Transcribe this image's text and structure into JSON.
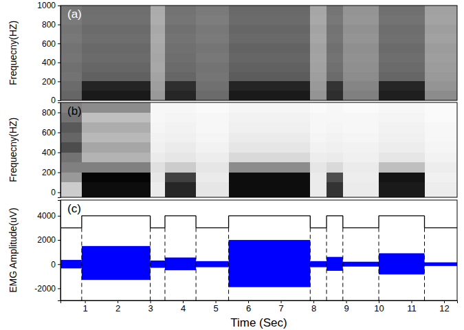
{
  "chart_data": [
    {
      "type": "heatmap",
      "annotation": "(a)",
      "ylabel": "Frequecny(HZ)",
      "tick_labels": "y",
      "xlim": [
        0.25,
        12.4
      ],
      "ylim": [
        0,
        1000
      ],
      "yticks": [
        0,
        200,
        400,
        600,
        800,
        1000
      ],
      "x_edges": [
        0.25,
        0.9,
        3.0,
        3.45,
        4.4,
        5.4,
        7.9,
        8.4,
        8.9,
        10.0,
        11.4,
        12.4
      ],
      "y_edges": [
        0,
        100,
        200,
        300,
        400,
        500,
        600,
        700,
        800,
        900,
        1000
      ],
      "zlim": [
        0,
        1
      ],
      "z": [
        [
          0.4,
          0.1,
          0.6,
          0.15,
          0.42,
          0.1,
          0.58,
          0.18,
          0.5,
          0.12,
          0.55
        ],
        [
          0.42,
          0.14,
          0.62,
          0.18,
          0.44,
          0.14,
          0.6,
          0.2,
          0.52,
          0.15,
          0.58
        ],
        [
          0.45,
          0.38,
          0.64,
          0.4,
          0.46,
          0.36,
          0.62,
          0.42,
          0.55,
          0.4,
          0.6
        ],
        [
          0.44,
          0.4,
          0.66,
          0.42,
          0.45,
          0.38,
          0.63,
          0.44,
          0.56,
          0.42,
          0.61
        ],
        [
          0.46,
          0.42,
          0.65,
          0.43,
          0.47,
          0.4,
          0.64,
          0.45,
          0.57,
          0.43,
          0.62
        ],
        [
          0.45,
          0.41,
          0.66,
          0.44,
          0.46,
          0.39,
          0.63,
          0.44,
          0.56,
          0.42,
          0.61
        ],
        [
          0.47,
          0.43,
          0.67,
          0.45,
          0.48,
          0.41,
          0.65,
          0.46,
          0.58,
          0.44,
          0.63
        ],
        [
          0.46,
          0.42,
          0.66,
          0.44,
          0.47,
          0.4,
          0.64,
          0.45,
          0.57,
          0.43,
          0.62
        ],
        [
          0.48,
          0.44,
          0.68,
          0.46,
          0.49,
          0.42,
          0.66,
          0.47,
          0.59,
          0.45,
          0.64
        ],
        [
          0.47,
          0.43,
          0.67,
          0.45,
          0.48,
          0.41,
          0.65,
          0.46,
          0.58,
          0.44,
          0.63
        ]
      ]
    },
    {
      "type": "heatmap",
      "annotation": "(b)",
      "ylabel": "Frequecny(HZ)",
      "tick_labels": "y",
      "xlim": [
        0.25,
        12.4
      ],
      "ylim": [
        -50,
        900
      ],
      "yticks": [
        0,
        200,
        400,
        600,
        800
      ],
      "x_edges": [
        0.25,
        0.9,
        3.0,
        3.45,
        4.4,
        5.4,
        7.9,
        8.4,
        8.9,
        10.0,
        11.4,
        12.4
      ],
      "y_edges": [
        -50,
        100,
        200,
        300,
        400,
        500,
        600,
        700,
        800,
        900
      ],
      "zlim": [
        0,
        1
      ],
      "z": [
        [
          0.8,
          0.05,
          0.92,
          0.15,
          0.9,
          0.05,
          0.92,
          0.2,
          0.92,
          0.1,
          0.93
        ],
        [
          0.6,
          0.02,
          0.9,
          0.25,
          0.92,
          0.05,
          0.92,
          0.3,
          0.93,
          0.08,
          0.94
        ],
        [
          0.5,
          0.5,
          0.88,
          0.8,
          0.9,
          0.55,
          0.9,
          0.85,
          0.92,
          0.75,
          0.93
        ],
        [
          0.45,
          0.7,
          0.92,
          0.9,
          0.93,
          0.85,
          0.93,
          0.92,
          0.94,
          0.9,
          0.95
        ],
        [
          0.3,
          0.65,
          0.94,
          0.92,
          0.95,
          0.9,
          0.95,
          0.94,
          0.95,
          0.93,
          0.96
        ],
        [
          0.4,
          0.72,
          0.95,
          0.94,
          0.96,
          0.92,
          0.96,
          0.95,
          0.96,
          0.94,
          0.97
        ],
        [
          0.35,
          0.68,
          0.96,
          0.95,
          0.97,
          0.94,
          0.97,
          0.96,
          0.97,
          0.95,
          0.97
        ],
        [
          0.45,
          0.75,
          0.97,
          0.96,
          0.97,
          0.95,
          0.97,
          0.97,
          0.97,
          0.96,
          0.98
        ],
        [
          0.5,
          0.55,
          0.97,
          0.97,
          0.98,
          0.96,
          0.98,
          0.97,
          0.98,
          0.97,
          0.98
        ]
      ]
    },
    {
      "type": "line",
      "annotation": "(c)",
      "xlabel": "Time (Sec)",
      "ylabel": "EMG Amplitude(uV)",
      "xlim": [
        0.25,
        12.4
      ],
      "ylim": [
        -3000,
        5300
      ],
      "xticks": [
        1,
        2,
        3,
        4,
        5,
        6,
        7,
        8,
        9,
        10,
        11,
        12
      ],
      "yticks": [
        -2000,
        0,
        2000,
        4000
      ],
      "series": [
        {
          "type": "band",
          "color": "#0000ff",
          "edges": [
            0.25,
            0.9,
            3.0,
            3.45,
            4.4,
            5.4,
            7.9,
            8.4,
            8.9,
            10.0,
            11.4,
            12.4
          ],
          "upper": [
            350,
            1500,
            300,
            550,
            250,
            2000,
            250,
            600,
            200,
            900,
            150
          ],
          "lower": [
            -350,
            -1300,
            -300,
            -500,
            -250,
            -1900,
            -250,
            -550,
            -200,
            -850,
            -150
          ]
        },
        {
          "type": "step",
          "color": "#000000",
          "edges": [
            0.25,
            0.9,
            3.0,
            3.45,
            4.4,
            5.4,
            7.9,
            8.4,
            8.9,
            10.0,
            11.4,
            12.4
          ],
          "values": [
            3000,
            4000,
            3000,
            4000,
            3000,
            4000,
            3000,
            4000,
            3000,
            4000,
            3000
          ]
        }
      ],
      "vlines": [
        0.9,
        3.0,
        3.45,
        4.4,
        5.4,
        7.9,
        8.4,
        8.9,
        10.0,
        11.4
      ]
    }
  ]
}
